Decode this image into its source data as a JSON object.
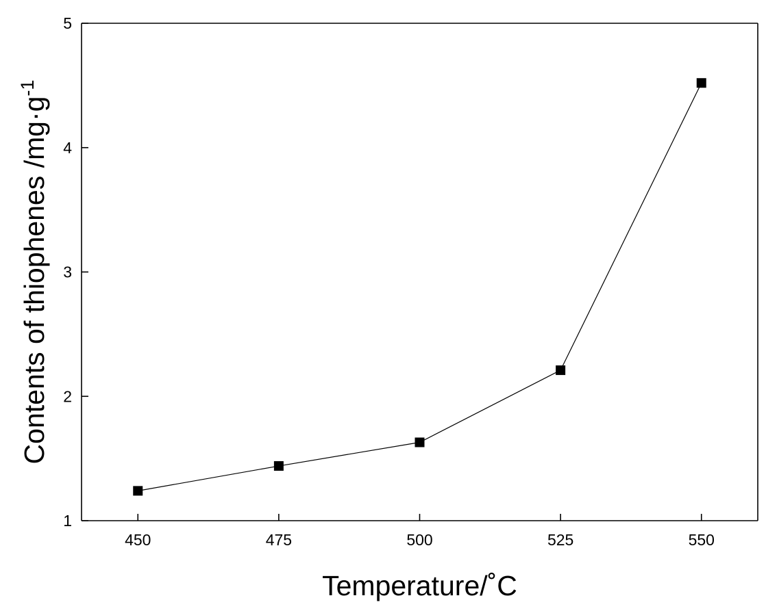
{
  "chart_data": {
    "type": "line",
    "xlabel": "Temperature/˚C",
    "ylabel_main": "Contents of thiophenes /mg·g",
    "ylabel_superscript": "-1",
    "x_ticks": [
      450,
      475,
      500,
      525,
      550
    ],
    "y_ticks": [
      1,
      2,
      3,
      4,
      5
    ],
    "xlim": [
      440,
      560
    ],
    "ylim": [
      1,
      5
    ],
    "grid": false,
    "marker": "square",
    "series_color": "#000000",
    "series": [
      {
        "x": [
          450,
          475,
          500,
          525,
          550
        ],
        "y": [
          1.24,
          1.44,
          1.63,
          2.21,
          4.52
        ]
      }
    ]
  }
}
